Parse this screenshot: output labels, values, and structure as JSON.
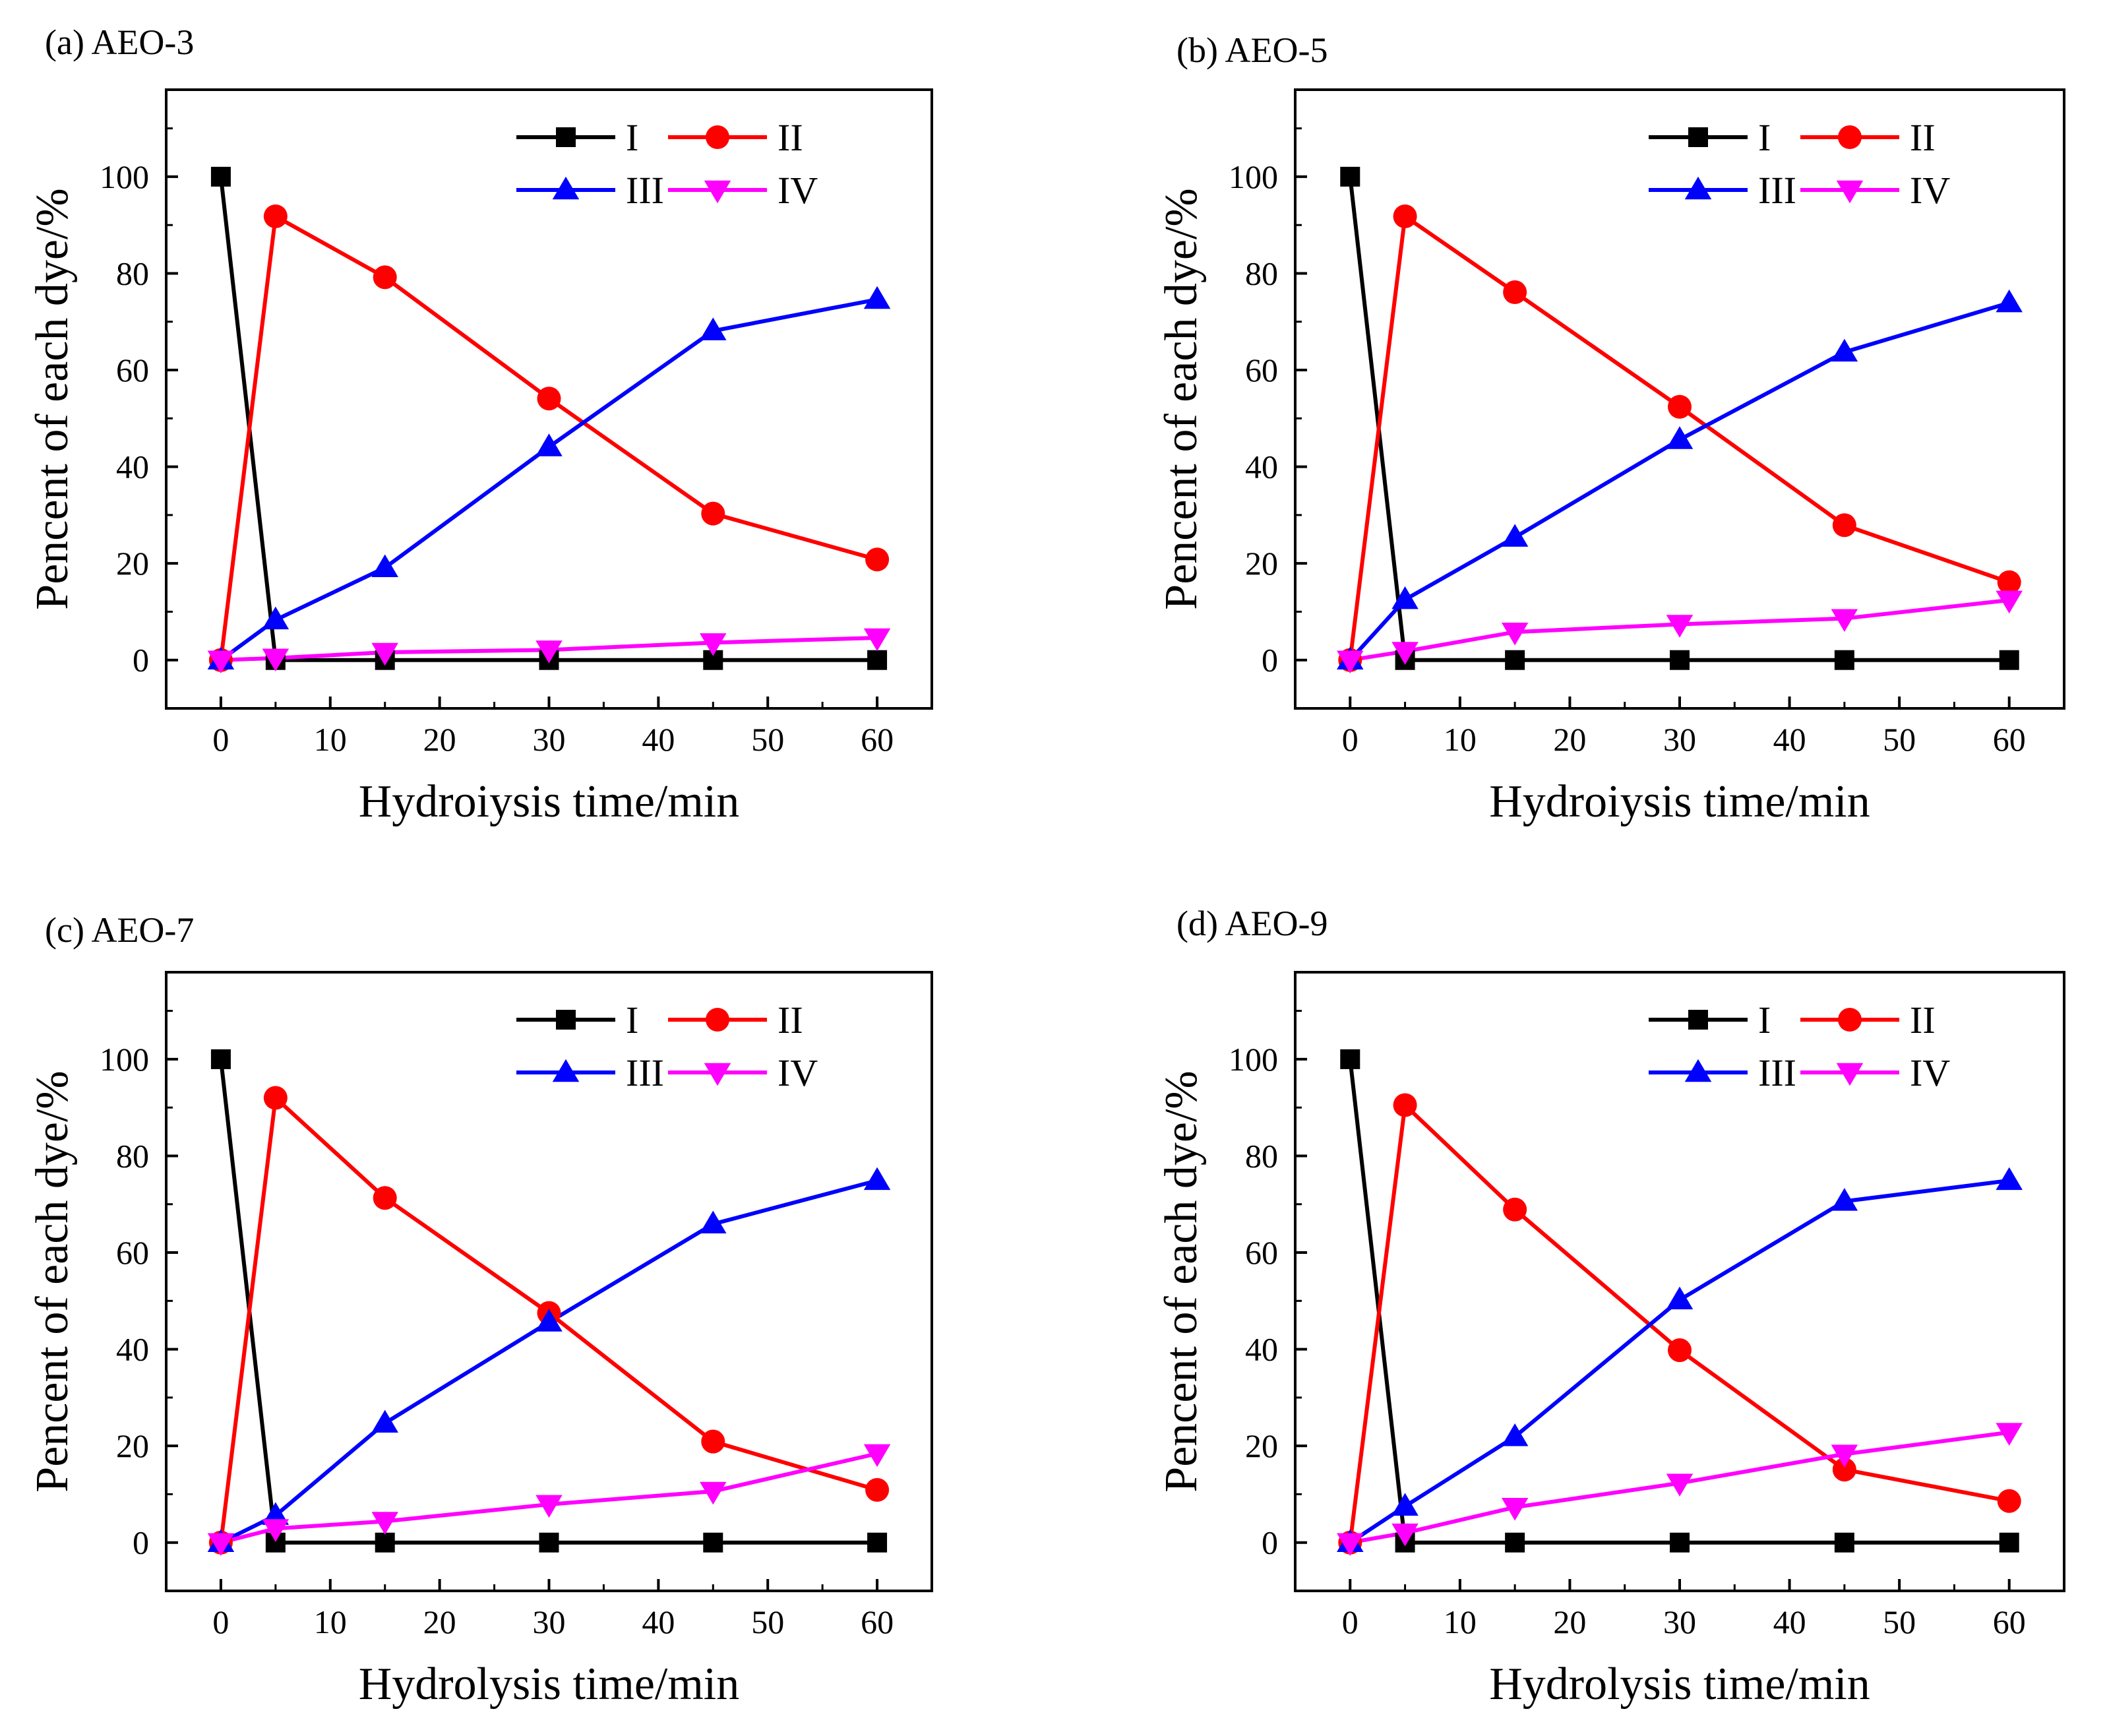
{
  "figure": {
    "series_colors": {
      "I": "#000000",
      "II": "#ff0000",
      "III": "#0000ff",
      "IV": "#ff00ff"
    },
    "legend_labels": [
      "I",
      "II",
      "III",
      "IV"
    ]
  },
  "chart_data": [
    {
      "type": "line",
      "panel_label": "(a) AEO-3",
      "xlabel": "Hydroiysis time/min",
      "ylabel": "Pencent of each dye/%",
      "xlim": [
        -5,
        65
      ],
      "ylim": [
        -10,
        118
      ],
      "xticks": [
        0,
        10,
        20,
        30,
        40,
        50,
        60
      ],
      "yticks": [
        0,
        20,
        40,
        60,
        80,
        100
      ],
      "x": [
        0,
        5,
        15,
        30,
        45,
        60
      ],
      "series": [
        {
          "name": "I",
          "marker": "square",
          "values": [
            100,
            0,
            0,
            0,
            0,
            0
          ]
        },
        {
          "name": "II",
          "marker": "circle",
          "values": [
            0,
            91.8,
            79.2,
            54.1,
            30.3,
            20.8
          ]
        },
        {
          "name": "III",
          "marker": "triangle-up",
          "values": [
            0,
            8.3,
            19.1,
            44.1,
            68.1,
            74.6
          ]
        },
        {
          "name": "IV",
          "marker": "triangle-down",
          "values": [
            0,
            0.4,
            1.6,
            2.1,
            3.6,
            4.6
          ]
        }
      ]
    },
    {
      "type": "line",
      "panel_label": "(b) AEO-5",
      "xlabel": "Hydroiysis time/min",
      "ylabel": "Pencent of each dye/%",
      "xlim": [
        -5,
        65
      ],
      "ylim": [
        -10,
        118
      ],
      "xticks": [
        0,
        10,
        20,
        30,
        40,
        50,
        60
      ],
      "yticks": [
        0,
        20,
        40,
        60,
        80,
        100
      ],
      "x": [
        0,
        5,
        15,
        30,
        45,
        60
      ],
      "series": [
        {
          "name": "I",
          "marker": "square",
          "values": [
            100,
            0,
            0,
            0,
            0,
            0
          ]
        },
        {
          "name": "II",
          "marker": "circle",
          "values": [
            0,
            91.8,
            76.1,
            52.4,
            27.9,
            16.1
          ]
        },
        {
          "name": "III",
          "marker": "triangle-up",
          "values": [
            0,
            12.5,
            25.4,
            45.6,
            63.7,
            73.9
          ]
        },
        {
          "name": "IV",
          "marker": "triangle-down",
          "values": [
            0,
            1.8,
            5.8,
            7.4,
            8.6,
            12.4
          ]
        }
      ]
    },
    {
      "type": "line",
      "panel_label": "(c) AEO-7",
      "xlabel": "Hydrolysis time/min",
      "ylabel": "Pencent of each dye/%",
      "xlim": [
        -5,
        65
      ],
      "ylim": [
        -10,
        118
      ],
      "xticks": [
        0,
        10,
        20,
        30,
        40,
        50,
        60
      ],
      "yticks": [
        0,
        20,
        40,
        60,
        80,
        100
      ],
      "x": [
        0,
        5,
        15,
        30,
        45,
        60
      ],
      "series": [
        {
          "name": "I",
          "marker": "square",
          "values": [
            100,
            0,
            0,
            0,
            0,
            0
          ]
        },
        {
          "name": "II",
          "marker": "circle",
          "values": [
            0,
            92.0,
            71.3,
            47.5,
            20.9,
            10.9
          ]
        },
        {
          "name": "III",
          "marker": "triangle-up",
          "values": [
            0,
            5.6,
            24.7,
            45.6,
            65.9,
            74.9
          ]
        },
        {
          "name": "IV",
          "marker": "triangle-down",
          "values": [
            0,
            2.9,
            4.4,
            7.9,
            10.6,
            18.4
          ]
        }
      ]
    },
    {
      "type": "line",
      "panel_label": "(d) AEO-9",
      "xlabel": "Hydrolysis time/min",
      "ylabel": "Pencent of each dye/%",
      "xlim": [
        -5,
        65
      ],
      "ylim": [
        -10,
        118
      ],
      "xticks": [
        0,
        10,
        20,
        30,
        40,
        50,
        60
      ],
      "yticks": [
        0,
        20,
        40,
        60,
        80,
        100
      ],
      "x": [
        0,
        5,
        15,
        30,
        45,
        60
      ],
      "series": [
        {
          "name": "I",
          "marker": "square",
          "values": [
            100,
            0,
            0,
            0,
            0,
            0
          ]
        },
        {
          "name": "II",
          "marker": "circle",
          "values": [
            0,
            90.5,
            68.9,
            39.8,
            15.1,
            8.6
          ]
        },
        {
          "name": "III",
          "marker": "triangle-up",
          "values": [
            0,
            7.5,
            21.9,
            50.2,
            70.6,
            74.9
          ]
        },
        {
          "name": "IV",
          "marker": "triangle-down",
          "values": [
            0,
            2.0,
            7.3,
            12.3,
            18.3,
            22.8
          ]
        }
      ]
    }
  ]
}
